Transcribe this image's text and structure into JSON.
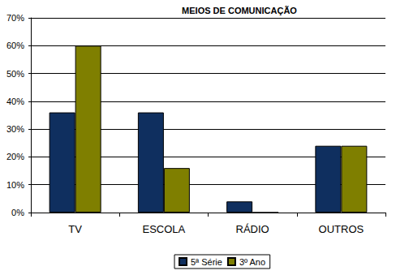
{
  "chart_data": {
    "type": "bar",
    "title": "MEIOS DE COMUNICAÇÃO",
    "categories": [
      "TV",
      "ESCOLA",
      "RÁDIO",
      "OUTROS"
    ],
    "series": [
      {
        "name": "5ª Série",
        "color": "#0f2f5f",
        "values": [
          36,
          36,
          4,
          24
        ]
      },
      {
        "name": "3º Ano",
        "color": "#7f7f00",
        "values": [
          60,
          16,
          0,
          24
        ]
      }
    ],
    "ylim": [
      0,
      70
    ],
    "yticks": [
      {
        "value": 0,
        "label": "0%"
      },
      {
        "value": 10,
        "label": "10%"
      },
      {
        "value": 20,
        "label": "20%"
      },
      {
        "value": 30,
        "label": "30%"
      },
      {
        "value": 40,
        "label": "40%"
      },
      {
        "value": 50,
        "label": "50%"
      },
      {
        "value": 60,
        "label": "60%"
      },
      {
        "value": 70,
        "label": "70%"
      }
    ],
    "grid": true,
    "legend": "bottom"
  }
}
